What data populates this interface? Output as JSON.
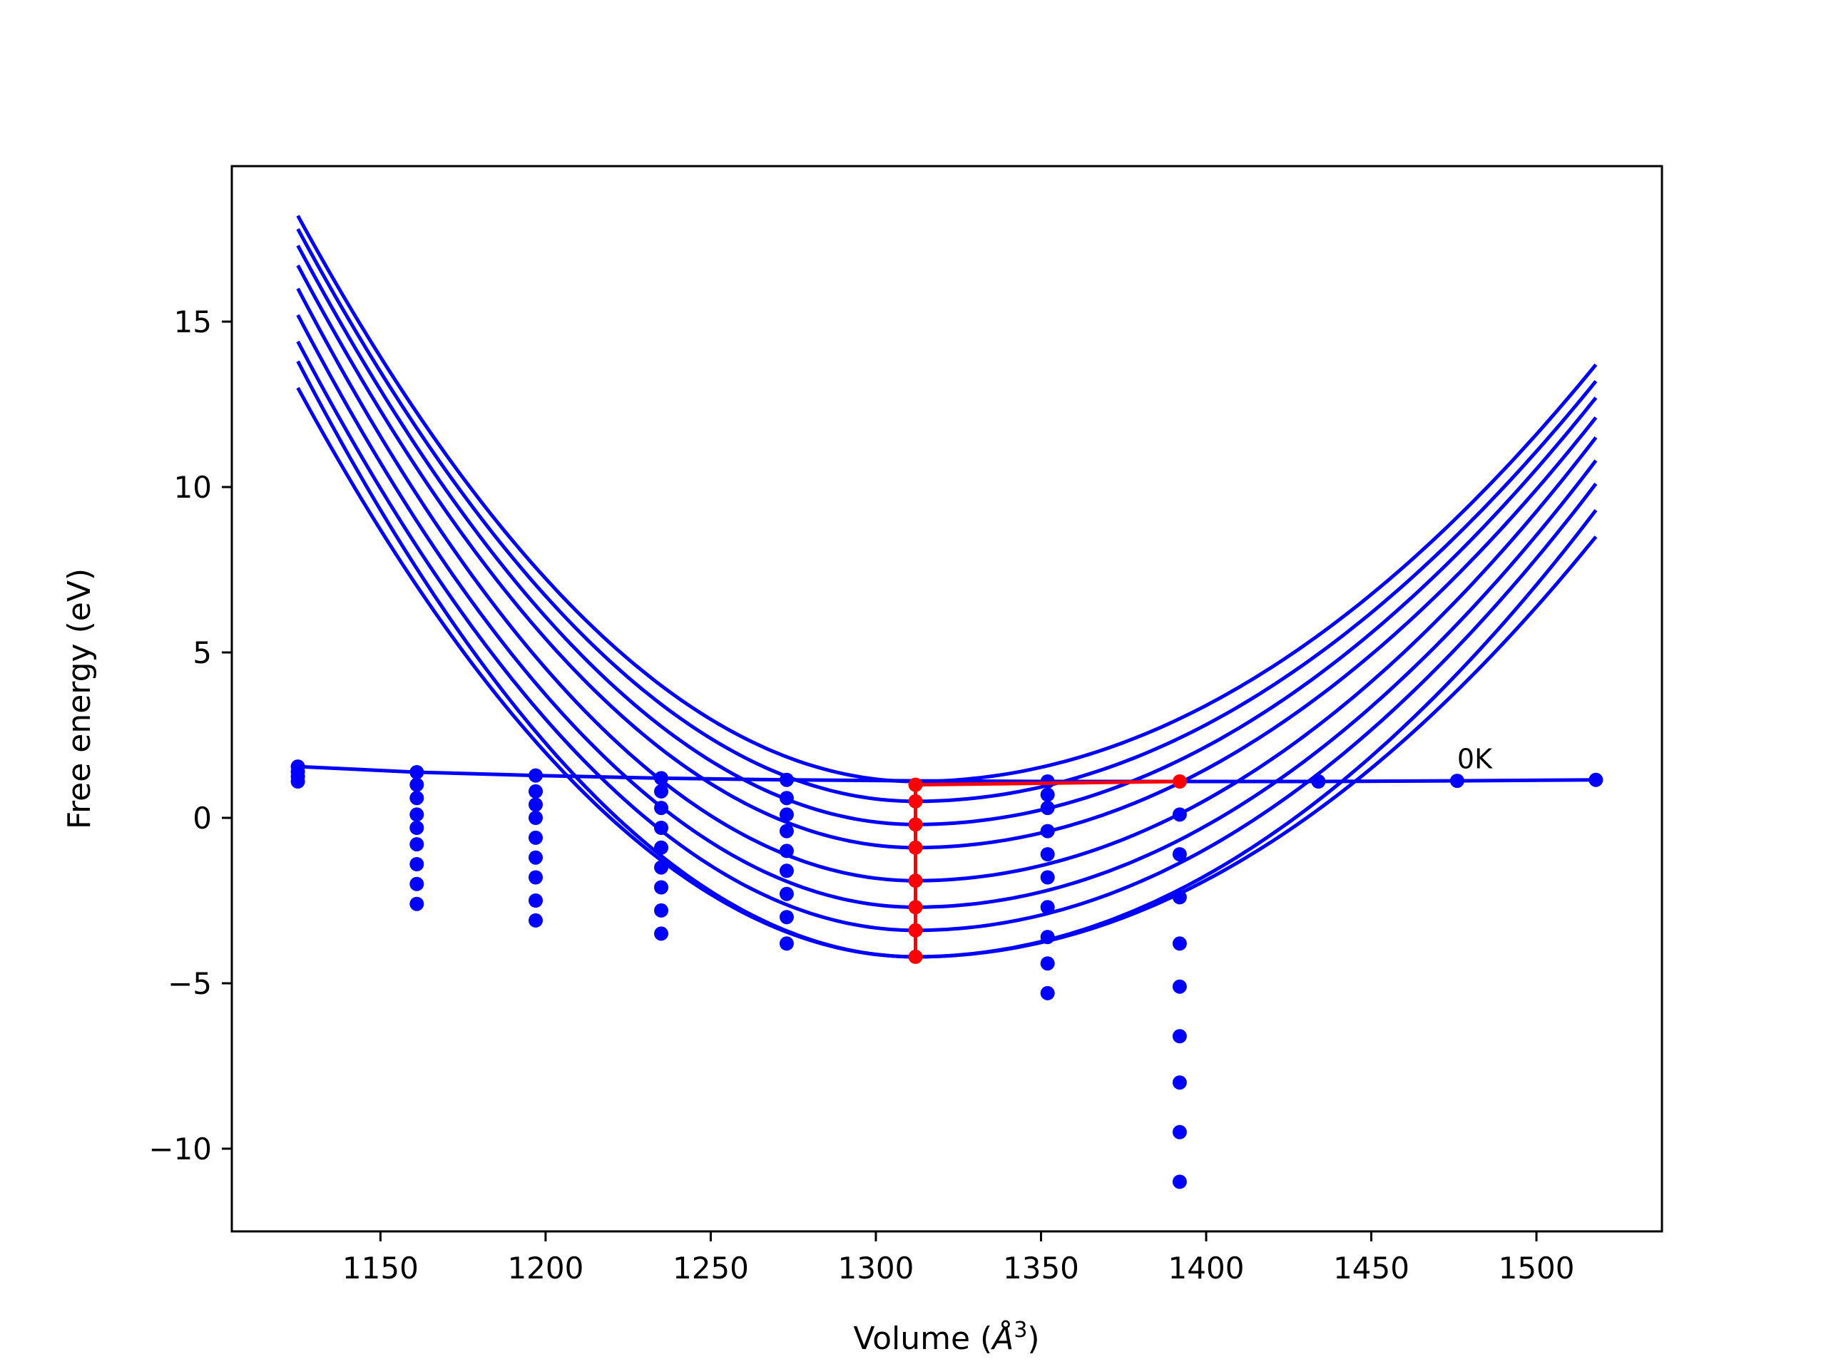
{
  "chart_data": {
    "type": "line",
    "title": "",
    "xlabel": "Volume (",
    "xlabel_symbol": "Å",
    "xlabel_exponent": "3",
    "xlabel_close": ")",
    "ylabel": "Free energy (eV)",
    "xlim": [
      1105,
      1538
    ],
    "ylim": [
      -12.5,
      19.7
    ],
    "xticks": [
      1150,
      1200,
      1250,
      1300,
      1350,
      1400,
      1450,
      1500
    ],
    "xtick_labels": [
      "1150",
      "1200",
      "1250",
      "1300",
      "1350",
      "1400",
      "1450",
      "1500"
    ],
    "yticks": [
      15,
      10,
      5,
      0,
      -5,
      -10
    ],
    "ytick_labels": [
      "15",
      "10",
      "5",
      "0",
      "−5",
      "−10"
    ],
    "grid": false,
    "legend": "none",
    "annotation": {
      "text": "0K",
      "x": 1476,
      "y": 1.5
    },
    "colors": {
      "curves": "#0000ff",
      "points": "#0000ff",
      "highlight": "#ff0000",
      "frame": "#000000"
    },
    "fit_curves": {
      "x_range": [
        1125,
        1518
      ],
      "min_x": 1312,
      "series": [
        {
          "min_y": 1.1,
          "y_left": 18.2,
          "y_right": 13.7
        },
        {
          "min_y": 0.5,
          "y_left": 17.8,
          "y_right": 13.2
        },
        {
          "min_y": -0.2,
          "y_left": 17.3,
          "y_right": 12.7
        },
        {
          "min_y": -0.9,
          "y_left": 16.7,
          "y_right": 12.1
        },
        {
          "min_y": -1.9,
          "y_left": 16.0,
          "y_right": 11.5
        },
        {
          "min_y": -2.7,
          "y_left": 15.2,
          "y_right": 10.8
        },
        {
          "min_y": -3.4,
          "y_left": 14.4,
          "y_right": 10.1
        },
        {
          "min_y": -4.2,
          "y_left": 13.8,
          "y_right": 9.3
        },
        {
          "min_y": -4.2,
          "y_left": 13.0,
          "y_right": 8.5
        }
      ]
    },
    "zero_k_line": {
      "x": [
        1125,
        1161,
        1197,
        1235,
        1273,
        1312,
        1352,
        1392,
        1434,
        1476,
        1518
      ],
      "y": [
        1.55,
        1.38,
        1.28,
        1.2,
        1.15,
        1.12,
        1.1,
        1.1,
        1.1,
        1.12,
        1.15
      ]
    },
    "point_columns": [
      {
        "x": 1125,
        "y": [
          1.55,
          1.4,
          1.25,
          1.1
        ]
      },
      {
        "x": 1161,
        "y": [
          1.38,
          1.0,
          0.6,
          0.1,
          -0.3,
          -0.8,
          -1.4,
          -2.0,
          -2.6
        ]
      },
      {
        "x": 1197,
        "y": [
          1.28,
          0.8,
          0.4,
          0.0,
          -0.6,
          -1.2,
          -1.8,
          -2.5,
          -3.1
        ]
      },
      {
        "x": 1235,
        "y": [
          1.2,
          0.8,
          0.3,
          -0.3,
          -0.9,
          -1.5,
          -2.1,
          -2.8,
          -3.5
        ]
      },
      {
        "x": 1273,
        "y": [
          1.15,
          0.6,
          0.1,
          -0.4,
          -1.0,
          -1.6,
          -2.3,
          -3.0,
          -3.8
        ]
      },
      {
        "x": 1352,
        "y": [
          1.1,
          0.7,
          0.3,
          -0.4,
          -1.1,
          -1.8,
          -2.7,
          -3.6,
          -4.4,
          -5.3
        ]
      },
      {
        "x": 1392,
        "y": [
          0.1,
          -1.1,
          -2.4,
          -3.8,
          -5.1,
          -6.6,
          -8.0,
          -9.5,
          -11.0
        ]
      },
      {
        "x": 1434,
        "y": [
          1.1
        ]
      },
      {
        "x": 1476,
        "y": [
          1.12
        ]
      },
      {
        "x": 1518,
        "y": [
          1.15
        ]
      }
    ],
    "highlight_path": {
      "vertical": {
        "x": 1312,
        "y": [
          1.0,
          0.5,
          -0.2,
          -0.9,
          -1.9,
          -2.7,
          -3.4,
          -4.2
        ]
      },
      "segment": {
        "x": [
          1312,
          1392
        ],
        "y": [
          1.0,
          1.1
        ]
      }
    }
  }
}
